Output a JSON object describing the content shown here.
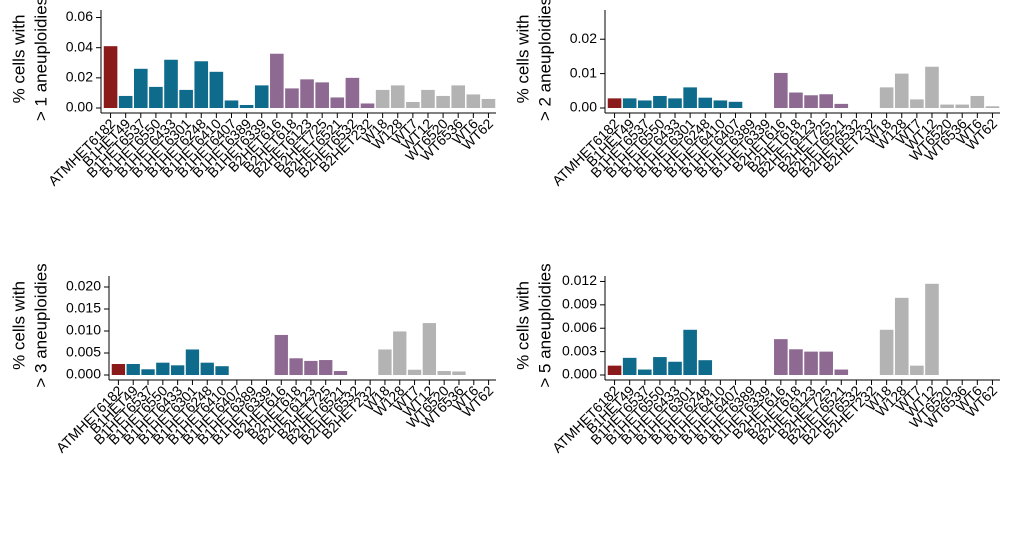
{
  "chart_data": [
    {
      "type": "bar",
      "ylabel": [
        "% cells with",
        "> 1 aneuploidies"
      ],
      "categories": [
        "ATMHET6182",
        "B1HET49",
        "B1HET6537",
        "B1HET6550",
        "B1HET6433",
        "B1HET6301",
        "B1HET6248",
        "B1HET6410",
        "B1HET6407",
        "B1HET6389",
        "B1HET6339",
        "B2HET616",
        "B2HET618",
        "B2HET6123",
        "B2HET725",
        "B2HET6521",
        "B2HET6532",
        "B2HET232",
        "W18",
        "W128",
        "WT7",
        "WT12",
        "WT6520",
        "WT6536",
        "WT6",
        "WT62"
      ],
      "values": [
        0.041,
        0.008,
        0.026,
        0.014,
        0.032,
        0.012,
        0.031,
        0.024,
        0.005,
        0.002,
        0.015,
        0.036,
        0.013,
        0.019,
        0.017,
        0.007,
        0.02,
        0.003,
        0.012,
        0.015,
        0.004,
        0.012,
        0.008,
        0.015,
        0.009,
        0.006
      ],
      "colors": [
        "#8b1a1a",
        "#0f6b8c",
        "#0f6b8c",
        "#0f6b8c",
        "#0f6b8c",
        "#0f6b8c",
        "#0f6b8c",
        "#0f6b8c",
        "#0f6b8c",
        "#0f6b8c",
        "#0f6b8c",
        "#8e6a93",
        "#8e6a93",
        "#8e6a93",
        "#8e6a93",
        "#8e6a93",
        "#8e6a93",
        "#8e6a93",
        "#b3b3b3",
        "#b3b3b3",
        "#b3b3b3",
        "#b3b3b3",
        "#b3b3b3",
        "#b3b3b3",
        "#b3b3b3",
        "#b3b3b3"
      ],
      "ylim": [
        0,
        0.065
      ],
      "yticks": [
        {
          "value": 0,
          "label": "0.00"
        },
        {
          "value": 0.02,
          "label": "0.02"
        },
        {
          "value": 0.04,
          "label": "0.04"
        },
        {
          "value": 0.06,
          "label": "0.06"
        }
      ]
    },
    {
      "type": "bar",
      "ylabel": [
        "% cells with",
        "> 2 aneuploidies"
      ],
      "categories": [
        "ATMHET6182",
        "B1HET49",
        "B1HET6537",
        "B1HET6550",
        "B1HET6433",
        "B1HET6301",
        "B1HET6248",
        "B1HET6410",
        "B1HET6407",
        "B1HET6389",
        "B1HET6339",
        "B2HET616",
        "B2HET618",
        "B2HET6123",
        "B2HET725",
        "B2HET6521",
        "B2HET6532",
        "B2HET232",
        "W18",
        "W128",
        "WT7",
        "WT12",
        "WT6520",
        "WT6536",
        "WT6",
        "WT62"
      ],
      "values": [
        0.0028,
        0.0028,
        0.0022,
        0.0035,
        0.0028,
        0.006,
        0.003,
        0.0022,
        0.0018,
        0,
        0,
        0.0102,
        0.0045,
        0.0037,
        0.004,
        0.0012,
        0,
        0,
        0.006,
        0.01,
        0.0025,
        0.012,
        0.001,
        0.001,
        0.0035,
        0.0005
      ],
      "colors": [
        "#8b1a1a",
        "#0f6b8c",
        "#0f6b8c",
        "#0f6b8c",
        "#0f6b8c",
        "#0f6b8c",
        "#0f6b8c",
        "#0f6b8c",
        "#0f6b8c",
        "#0f6b8c",
        "#0f6b8c",
        "#8e6a93",
        "#8e6a93",
        "#8e6a93",
        "#8e6a93",
        "#8e6a93",
        "#8e6a93",
        "#8e6a93",
        "#b3b3b3",
        "#b3b3b3",
        "#b3b3b3",
        "#b3b3b3",
        "#b3b3b3",
        "#b3b3b3",
        "#b3b3b3",
        "#b3b3b3"
      ],
      "ylim": [
        0,
        0.0285
      ],
      "yticks": [
        {
          "value": 0,
          "label": "0.00"
        },
        {
          "value": 0.01,
          "label": "0.01"
        },
        {
          "value": 0.02,
          "label": "0.02"
        }
      ]
    },
    {
      "type": "bar",
      "ylabel": [
        "% cells with",
        "> 3 aneuploidies"
      ],
      "categories": [
        "ATMHET6182",
        "B1HET49",
        "B1HET6537",
        "B1HET6550",
        "B1HET6433",
        "B1HET6301",
        "B1HET6248",
        "B1HET6410",
        "B1HET6407",
        "B1HET6389",
        "B1HET6339",
        "B2HET616",
        "B2HET618",
        "B2HET6123",
        "B2HET725",
        "B2HET6521",
        "B2HET6532",
        "B2HET232",
        "W18",
        "W128",
        "WT7",
        "WT12",
        "WT6520",
        "WT6536",
        "WT6",
        "WT62"
      ],
      "values": [
        0.0025,
        0.0025,
        0.0013,
        0.0028,
        0.0022,
        0.0058,
        0.0028,
        0.002,
        0,
        0,
        0,
        0.0091,
        0.0038,
        0.0032,
        0.0034,
        0.0009,
        0,
        0,
        0.0058,
        0.0099,
        0.0012,
        0.0118,
        0.0009,
        0.0008,
        0,
        0
      ],
      "colors": [
        "#8b1a1a",
        "#0f6b8c",
        "#0f6b8c",
        "#0f6b8c",
        "#0f6b8c",
        "#0f6b8c",
        "#0f6b8c",
        "#0f6b8c",
        "#0f6b8c",
        "#0f6b8c",
        "#0f6b8c",
        "#8e6a93",
        "#8e6a93",
        "#8e6a93",
        "#8e6a93",
        "#8e6a93",
        "#8e6a93",
        "#8e6a93",
        "#b3b3b3",
        "#b3b3b3",
        "#b3b3b3",
        "#b3b3b3",
        "#b3b3b3",
        "#b3b3b3",
        "#b3b3b3",
        "#b3b3b3"
      ],
      "ylim": [
        0,
        0.0225
      ],
      "yticks": [
        {
          "value": 0,
          "label": "0.000"
        },
        {
          "value": 0.005,
          "label": "0.005"
        },
        {
          "value": 0.01,
          "label": "0.010"
        },
        {
          "value": 0.015,
          "label": "0.015"
        },
        {
          "value": 0.02,
          "label": "0.020"
        }
      ]
    },
    {
      "type": "bar",
      "ylabel": [
        "% cells with",
        "> 5 aneuploidies"
      ],
      "categories": [
        "ATMHET6182",
        "B1HET49",
        "B1HET6537",
        "B1HET6550",
        "B1HET6433",
        "B1HET6301",
        "B1HET6248",
        "B1HET6410",
        "B1HET6407",
        "B1HET6389",
        "B1HET6339",
        "B2HET616",
        "B2HET618",
        "B2HET6123",
        "B2HET725",
        "B2HET6521",
        "B2HET6532",
        "B2HET232",
        "W18",
        "W128",
        "WT7",
        "WT12",
        "WT6520",
        "WT6536",
        "WT6",
        "WT62"
      ],
      "values": [
        0.0012,
        0.0022,
        0.0007,
        0.0023,
        0.0017,
        0.0058,
        0.0019,
        0,
        0,
        0,
        0,
        0.0046,
        0.0033,
        0.003,
        0.003,
        0.0007,
        0,
        0,
        0.0058,
        0.0099,
        0.0012,
        0.0117,
        0,
        0,
        0,
        0
      ],
      "colors": [
        "#8b1a1a",
        "#0f6b8c",
        "#0f6b8c",
        "#0f6b8c",
        "#0f6b8c",
        "#0f6b8c",
        "#0f6b8c",
        "#0f6b8c",
        "#0f6b8c",
        "#0f6b8c",
        "#0f6b8c",
        "#8e6a93",
        "#8e6a93",
        "#8e6a93",
        "#8e6a93",
        "#8e6a93",
        "#8e6a93",
        "#8e6a93",
        "#b3b3b3",
        "#b3b3b3",
        "#b3b3b3",
        "#b3b3b3",
        "#b3b3b3",
        "#b3b3b3",
        "#b3b3b3",
        "#b3b3b3"
      ],
      "ylim": [
        0,
        0.0127
      ],
      "yticks": [
        {
          "value": 0,
          "label": "0.000"
        },
        {
          "value": 0.003,
          "label": "0.003"
        },
        {
          "value": 0.006,
          "label": "0.006"
        },
        {
          "value": 0.009,
          "label": "0.009"
        },
        {
          "value": 0.012,
          "label": "0.012"
        }
      ]
    }
  ]
}
